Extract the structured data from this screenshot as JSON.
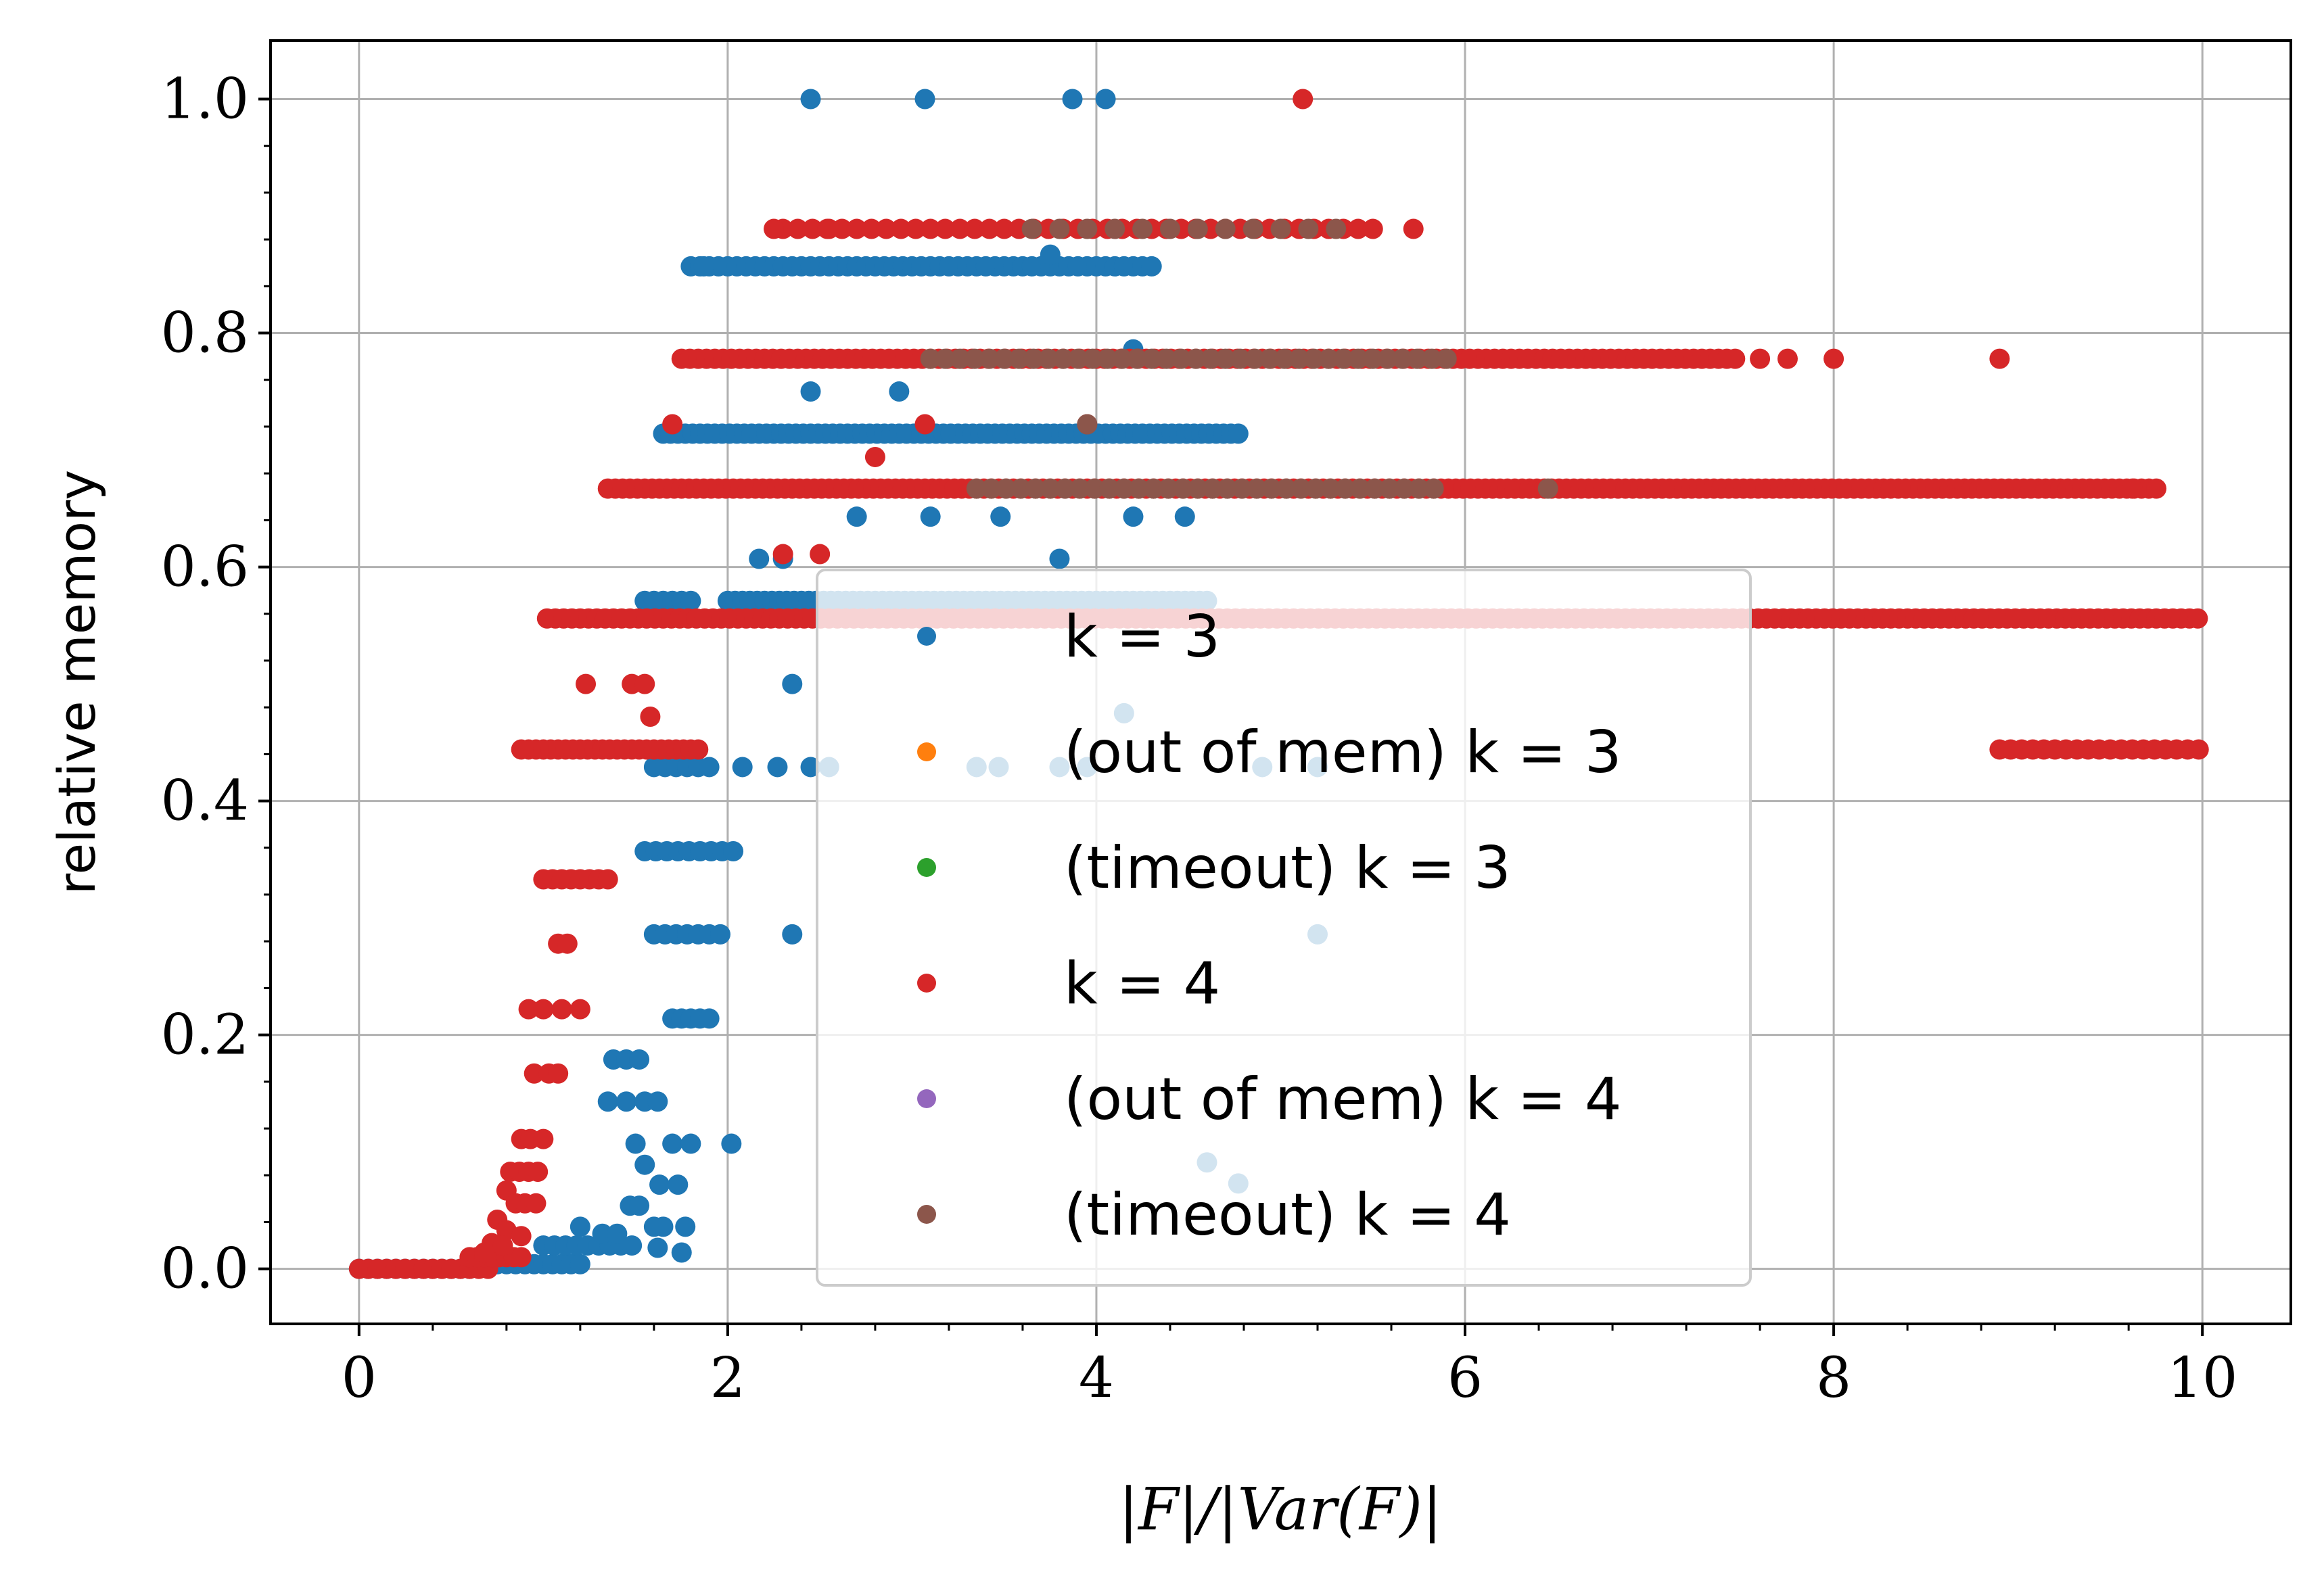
{
  "chart_data": {
    "type": "scatter",
    "xlabel": "|F|/|Var(F)|",
    "ylabel": "relative memory",
    "xlim": [
      -0.48,
      10.48
    ],
    "ylim": [
      -0.047,
      1.05
    ],
    "xticks": [
      0,
      2,
      4,
      6,
      8,
      10
    ],
    "xtick_labels": [
      "0",
      "2",
      "4",
      "6",
      "8",
      "10"
    ],
    "yticks": [
      0.0,
      0.2,
      0.4,
      0.6,
      0.8,
      1.0
    ],
    "ytick_labels": [
      "0.0",
      "0.2",
      "0.4",
      "0.6",
      "0.8",
      "1.0"
    ],
    "grid": true,
    "legend_position": "center",
    "colors": {
      "k3": "#1f77b4",
      "oom_k3": "#ff7f0e",
      "timeout_k3": "#2ca02c",
      "k4": "#d62728",
      "oom_k4": "#9467bd",
      "timeout_k4": "#8c564b"
    },
    "series": [
      {
        "name": "k = 3",
        "color": "#1f77b4",
        "runs": [
          [
            0.0,
            0.6,
            0.0,
            0.05
          ],
          [
            0.6,
            1.2,
            0.004,
            0.05
          ],
          [
            1.0,
            1.5,
            0.02,
            0.06
          ],
          [
            1.55,
            1.8,
            0.571,
            0.05
          ],
          [
            2.0,
            4.6,
            0.571,
            0.04
          ],
          [
            1.65,
            4.8,
            0.714,
            0.04
          ],
          [
            1.8,
            4.3,
            0.857,
            0.05
          ],
          [
            1.6,
            2.0,
            0.286,
            0.06
          ],
          [
            1.55,
            2.05,
            0.357,
            0.06
          ],
          [
            1.6,
            1.9,
            0.429,
            0.06
          ],
          [
            1.7,
            1.9,
            0.214,
            0.05
          ]
        ],
        "points": [
          [
            2.45,
            1.0
          ],
          [
            3.07,
            1.0
          ],
          [
            3.87,
            1.0
          ],
          [
            4.05,
            1.0
          ],
          [
            1.87,
            0.857
          ],
          [
            3.75,
            0.867
          ],
          [
            4.2,
            0.786
          ],
          [
            2.45,
            0.75
          ],
          [
            2.93,
            0.75
          ],
          [
            2.7,
            0.643
          ],
          [
            3.1,
            0.643
          ],
          [
            3.48,
            0.643
          ],
          [
            4.2,
            0.643
          ],
          [
            4.48,
            0.643
          ],
          [
            2.17,
            0.607
          ],
          [
            2.3,
            0.607
          ],
          [
            3.8,
            0.607
          ],
          [
            2.35,
            0.5
          ],
          [
            4.15,
            0.475
          ],
          [
            2.08,
            0.429
          ],
          [
            2.27,
            0.429
          ],
          [
            2.45,
            0.429
          ],
          [
            2.55,
            0.429
          ],
          [
            3.35,
            0.429
          ],
          [
            3.47,
            0.429
          ],
          [
            3.8,
            0.429
          ],
          [
            3.95,
            0.429
          ],
          [
            4.9,
            0.429
          ],
          [
            5.2,
            0.429
          ],
          [
            2.35,
            0.286
          ],
          [
            5.2,
            0.286
          ],
          [
            1.38,
            0.179
          ],
          [
            1.45,
            0.179
          ],
          [
            1.52,
            0.179
          ],
          [
            1.35,
            0.143
          ],
          [
            1.45,
            0.143
          ],
          [
            1.55,
            0.143
          ],
          [
            1.62,
            0.143
          ],
          [
            1.5,
            0.107
          ],
          [
            1.7,
            0.107
          ],
          [
            1.8,
            0.107
          ],
          [
            2.02,
            0.107
          ],
          [
            1.55,
            0.089
          ],
          [
            1.63,
            0.072
          ],
          [
            1.73,
            0.072
          ],
          [
            1.47,
            0.054
          ],
          [
            1.52,
            0.054
          ],
          [
            1.6,
            0.036
          ],
          [
            1.65,
            0.036
          ],
          [
            1.77,
            0.036
          ],
          [
            1.2,
            0.036
          ],
          [
            1.32,
            0.03
          ],
          [
            1.4,
            0.03
          ],
          [
            1.62,
            0.018
          ],
          [
            1.75,
            0.014
          ],
          [
            4.6,
            0.091
          ],
          [
            4.77,
            0.073
          ]
        ]
      },
      {
        "name": "(out of mem) k = 3",
        "color": "#ff7f0e",
        "runs": [],
        "points": []
      },
      {
        "name": "(timeout) k = 3",
        "color": "#2ca02c",
        "runs": [],
        "points": []
      },
      {
        "name": "k = 4",
        "color": "#d62728",
        "runs": [
          [
            0.0,
            0.7,
            0.0,
            0.05
          ],
          [
            0.6,
            0.9,
            0.01,
            0.04
          ],
          [
            0.88,
            1.85,
            0.444,
            0.04
          ],
          [
            1.0,
            1.35,
            0.333,
            0.05
          ],
          [
            1.02,
            10.0,
            0.556,
            0.045
          ],
          [
            1.35,
            9.75,
            0.667,
            0.04
          ],
          [
            1.75,
            7.5,
            0.778,
            0.045
          ],
          [
            8.9,
            10.0,
            0.444,
            0.06
          ],
          [
            2.3,
            5.5,
            0.889,
            0.08
          ]
        ],
        "points": [
          [
            5.12,
            1.0
          ],
          [
            2.25,
            0.889
          ],
          [
            2.55,
            0.889
          ],
          [
            5.72,
            0.889
          ],
          [
            8.0,
            0.778
          ],
          [
            8.9,
            0.778
          ],
          [
            7.75,
            0.778
          ],
          [
            7.6,
            0.778
          ],
          [
            9.62,
            0.667
          ],
          [
            1.7,
            0.722
          ],
          [
            3.07,
            0.722
          ],
          [
            3.95,
            0.722
          ],
          [
            2.8,
            0.694
          ],
          [
            2.3,
            0.611
          ],
          [
            2.5,
            0.611
          ],
          [
            1.23,
            0.5
          ],
          [
            1.48,
            0.5
          ],
          [
            1.55,
            0.5
          ],
          [
            1.58,
            0.472
          ],
          [
            1.08,
            0.278
          ],
          [
            1.13,
            0.278
          ],
          [
            0.92,
            0.222
          ],
          [
            1.0,
            0.222
          ],
          [
            1.1,
            0.222
          ],
          [
            1.2,
            0.222
          ],
          [
            0.95,
            0.167
          ],
          [
            1.03,
            0.167
          ],
          [
            1.08,
            0.167
          ],
          [
            0.88,
            0.111
          ],
          [
            0.93,
            0.111
          ],
          [
            1.0,
            0.111
          ],
          [
            0.82,
            0.083
          ],
          [
            0.87,
            0.083
          ],
          [
            0.92,
            0.083
          ],
          [
            0.97,
            0.083
          ],
          [
            0.8,
            0.067
          ],
          [
            0.85,
            0.056
          ],
          [
            0.9,
            0.056
          ],
          [
            0.96,
            0.056
          ],
          [
            0.75,
            0.042
          ],
          [
            0.8,
            0.033
          ],
          [
            0.88,
            0.028
          ],
          [
            0.72,
            0.022
          ],
          [
            0.78,
            0.02
          ],
          [
            0.68,
            0.014
          ]
        ]
      },
      {
        "name": "(out of mem) k = 4",
        "color": "#9467bd",
        "runs": [],
        "points": []
      },
      {
        "name": "(timeout) k = 4",
        "color": "#8c564b",
        "runs": [
          [
            3.1,
            5.9,
            0.778,
            0.08
          ],
          [
            3.35,
            5.9,
            0.667,
            0.08
          ],
          [
            3.65,
            5.4,
            0.889,
            0.15
          ]
        ],
        "points": [
          [
            3.95,
            0.722
          ],
          [
            6.45,
            0.667
          ]
        ]
      }
    ]
  }
}
